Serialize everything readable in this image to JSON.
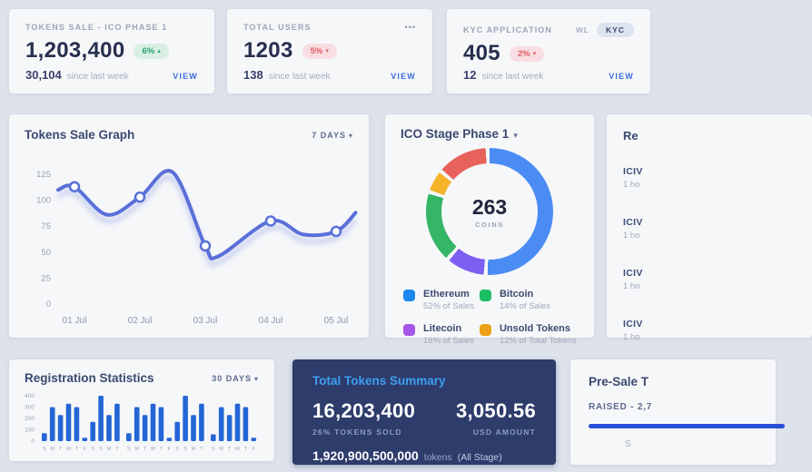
{
  "colors": {
    "page_bg": "#dde2eb",
    "card_bg": "#f6f7f9",
    "accent_blue": "#3e6ce0",
    "line_color": "#5a6fd8",
    "bar_color": "#2566d6",
    "dark_card_bg": "#2d3c6b",
    "badge_up_fg": "#2aa06d",
    "badge_down_fg": "#e25b66",
    "progress_color": "#2a4fd7"
  },
  "icons": {
    "caret_down": "▾",
    "more": "•••",
    "up_arrow": "▴",
    "down_arrow": "▾"
  },
  "stat_cards": [
    {
      "title": "TOKENS SALE - ICO PHASE 1",
      "value": "1,203,400",
      "badge": {
        "text": "6%",
        "arrow": "▴",
        "dir": "up"
      },
      "delta": "30,104",
      "delta_caption": "since last week",
      "view": "VIEW"
    },
    {
      "title": "TOTAL USERS",
      "menu_icon": "•••",
      "value": "1203",
      "badge": {
        "text": "5%",
        "arrow": "▾",
        "dir": "down"
      },
      "delta": "138",
      "delta_caption": "since last week",
      "view": "VIEW"
    },
    {
      "title": "KYC APPLICATION",
      "toggle": {
        "off": "WL",
        "on": "KYC"
      },
      "value": "405",
      "badge": {
        "text": "2%",
        "arrow": "▾",
        "dir": "down"
      },
      "delta": "12",
      "delta_caption": "since last week",
      "view": "VIEW"
    }
  ],
  "graph_card": {
    "title": "Tokens Sale Graph",
    "range": "7 DAYS"
  },
  "donut_card": {
    "title": "ICO Stage Phase 1"
  },
  "recent_card": {
    "title": "Re",
    "items": [
      {
        "name": "ICIV",
        "time": "1 ho"
      },
      {
        "name": "ICIV",
        "time": "1 ho"
      },
      {
        "name": "ICIV",
        "time": "1 ho"
      },
      {
        "name": "ICIV",
        "time": "1 ho"
      }
    ]
  },
  "registration_card": {
    "title": "Registration Statistics",
    "range": "30 DAYS"
  },
  "summary_card": {
    "title": "Total Tokens Summary",
    "tokens_value": "16,203,400",
    "tokens_caption": "26% TOKENS SOLD",
    "usd_value": "3,050.56",
    "usd_caption": "USD AMOUNT",
    "total_value": "1,920,900,500,000",
    "total_unit": "tokens",
    "total_note": "(All Stage)"
  },
  "presale_card": {
    "title": "Pre-Sale T",
    "raised": "RAISED - 2,7",
    "fragment": "S"
  },
  "chart_data": [
    {
      "id": "tokens_sale_graph",
      "type": "line",
      "title": "Tokens Sale Graph",
      "x": [
        "01 Jul",
        "02 Jul",
        "03 Jul",
        "04 Jul",
        "05 Jul"
      ],
      "values": [
        113,
        103,
        56,
        80,
        70
      ],
      "curve": [
        [
          -0.25,
          110
        ],
        [
          0,
          113
        ],
        [
          0.5,
          86
        ],
        [
          1,
          103
        ],
        [
          1.5,
          127
        ],
        [
          2,
          56
        ],
        [
          2.2,
          46
        ],
        [
          3,
          80
        ],
        [
          3.5,
          67
        ],
        [
          4,
          70
        ],
        [
          4.3,
          88
        ]
      ],
      "yticks": [
        0,
        25,
        50,
        75,
        100,
        125
      ],
      "ylim": [
        0,
        140
      ],
      "grid": false,
      "legend": "none",
      "line_color": "#5a6fd8"
    },
    {
      "id": "ico_stage_phase_1",
      "type": "pie",
      "title": "ICO Stage Phase 1",
      "center_value": "263",
      "center_label": "COINS",
      "legend": [
        {
          "name": "Ethereum",
          "detail": "52% of Sales",
          "color": "#1b87ee"
        },
        {
          "name": "Bitcoin",
          "detail": "14% of Sales",
          "color": "#1fbd63"
        },
        {
          "name": "Litecoin",
          "detail": "16% of Sales",
          "color": "#a656e8"
        },
        {
          "name": "Unsold Tokens",
          "detail": "12% of Total Tokens",
          "color": "#eda117"
        }
      ],
      "segments": [
        {
          "color": "#4b8cf4",
          "pct": 50.5
        },
        {
          "color": "#7c5ff0",
          "pct": 9.5
        },
        {
          "color": "#35b566",
          "pct": 17.5
        },
        {
          "color": "#f5b32a",
          "pct": 5
        },
        {
          "color": "#e8625c",
          "pct": 12.5
        }
      ],
      "gap_pct": 1
    },
    {
      "id": "registration_statistics",
      "type": "bar",
      "title": "Registration Statistics",
      "categories": [
        "S",
        "M",
        "T",
        "W",
        "T",
        "F",
        "S",
        "S",
        "M",
        "T",
        "S",
        "M",
        "T",
        "W",
        "T",
        "F",
        "S",
        "S",
        "M",
        "T",
        "S",
        "M",
        "T",
        "W",
        "T",
        "F"
      ],
      "values": [
        70,
        300,
        230,
        330,
        300,
        30,
        170,
        400,
        230,
        330,
        70,
        300,
        230,
        330,
        300,
        30,
        170,
        400,
        230,
        330,
        60,
        300,
        230,
        330,
        300,
        30
      ],
      "yticks": [
        0,
        100,
        200,
        300,
        400
      ],
      "ylim": [
        0,
        400
      ],
      "grid": false,
      "bar_color": "#2566d6"
    }
  ]
}
